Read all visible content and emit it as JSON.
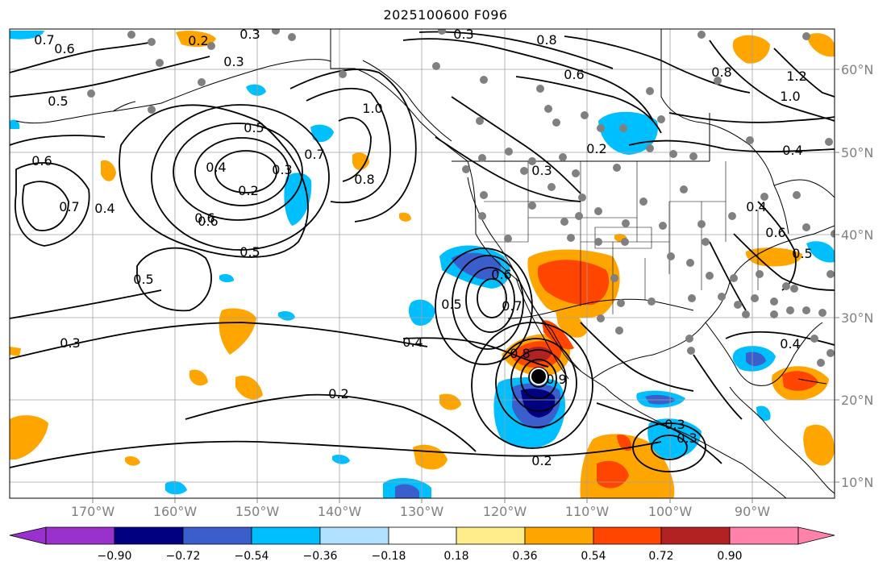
{
  "title": "2025100600 F096",
  "lat_labels": [
    "60°N",
    "50°N",
    "40°N",
    "30°N",
    "20°N",
    "10°N"
  ],
  "lon_labels": [
    "170°W",
    "160°W",
    "150°W",
    "140°W",
    "130°W",
    "120°W",
    "110°W",
    "100°W",
    "90°W"
  ],
  "colorbar": {
    "ticks": [
      "−0.90",
      "−0.72",
      "−0.54",
      "−0.36",
      "−0.18",
      "0.18",
      "0.36",
      "0.54",
      "0.72",
      "0.90"
    ],
    "colors": [
      "#9932cc",
      "#000080",
      "#3a5fcd",
      "#00bfff",
      "#b0e2ff",
      "#ffffff",
      "#ffec8b",
      "#ffa500",
      "#ff4500",
      "#b22222",
      "#ff82ab"
    ]
  },
  "contour_labels": [
    "0.7",
    "0.6",
    "0.5",
    "0.4",
    "0.3",
    "0.2",
    "0.5",
    "0.6",
    "0.4",
    "0.2",
    "0.3",
    "0.6",
    "0.7",
    "0.5",
    "0.5",
    "0.3",
    "0.3",
    "0.4",
    "0.2",
    "0.5",
    "0.6",
    "0.7",
    "0.8",
    "1.0",
    "0.8",
    "0.6",
    "0.3",
    "0.2",
    "0.3",
    "0.4",
    "0.6",
    "0.5",
    "0.4",
    "0.9",
    "0.2",
    "0.3",
    "0.4",
    "1.0",
    "0.8",
    "0.8",
    "0.7",
    "0.6",
    "0.3",
    "1.2"
  ],
  "colors": {
    "grid": "#a0a0a0",
    "contour": "#000000",
    "station": "#808080",
    "storm_center": "#000000",
    "tick_label": "#808080"
  }
}
